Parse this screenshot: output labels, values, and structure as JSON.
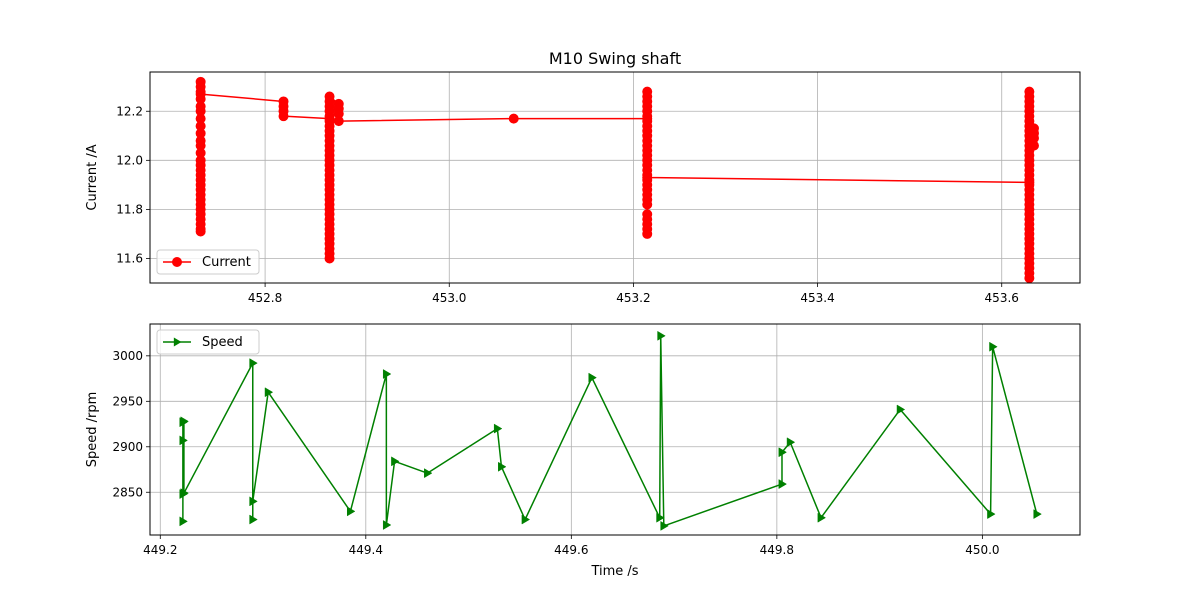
{
  "chart_data": [
    {
      "type": "line",
      "title": "M10 Swing shaft",
      "xlabel": "",
      "ylabel": "Current /A",
      "xlim": [
        452.675,
        453.685
      ],
      "ylim": [
        11.5,
        12.36
      ],
      "xticks": [
        452.8,
        453.0,
        453.2,
        453.4,
        453.6
      ],
      "xtick_labels": [
        "452.8",
        "453.0",
        "453.2",
        "453.4",
        "453.6"
      ],
      "yticks": [
        11.6,
        11.8,
        12.0,
        12.2
      ],
      "ytick_labels": [
        "11.6",
        "11.8",
        "12.0",
        "12.2"
      ],
      "grid": true,
      "legend": "lower-left",
      "series": [
        {
          "name": "Current",
          "color": "#ff0000",
          "marker": "circle",
          "points": [
            [
              452.73,
              11.71
            ],
            [
              452.73,
              11.72
            ],
            [
              452.73,
              11.74
            ],
            [
              452.73,
              11.76
            ],
            [
              452.73,
              11.78
            ],
            [
              452.73,
              11.8
            ],
            [
              452.73,
              11.82
            ],
            [
              452.73,
              11.84
            ],
            [
              452.73,
              11.86
            ],
            [
              452.73,
              11.88
            ],
            [
              452.73,
              11.9
            ],
            [
              452.73,
              11.92
            ],
            [
              452.73,
              11.94
            ],
            [
              452.73,
              11.96
            ],
            [
              452.73,
              11.98
            ],
            [
              452.73,
              12.0
            ],
            [
              452.73,
              12.03
            ],
            [
              452.73,
              12.06
            ],
            [
              452.73,
              12.08
            ],
            [
              452.73,
              12.11
            ],
            [
              452.73,
              12.14
            ],
            [
              452.73,
              12.17
            ],
            [
              452.73,
              12.2
            ],
            [
              452.73,
              12.22
            ],
            [
              452.73,
              12.25
            ],
            [
              452.73,
              12.28
            ],
            [
              452.73,
              12.3
            ],
            [
              452.73,
              12.32
            ],
            [
              452.73,
              12.27
            ],
            [
              452.82,
              12.24
            ],
            [
              452.82,
              12.22
            ],
            [
              452.82,
              12.2
            ],
            [
              452.82,
              12.18
            ],
            [
              452.87,
              12.17
            ],
            [
              452.87,
              11.6
            ],
            [
              452.87,
              11.62
            ],
            [
              452.87,
              11.64
            ],
            [
              452.87,
              11.66
            ],
            [
              452.87,
              11.68
            ],
            [
              452.87,
              11.7
            ],
            [
              452.87,
              11.72
            ],
            [
              452.87,
              11.74
            ],
            [
              452.87,
              11.76
            ],
            [
              452.87,
              11.78
            ],
            [
              452.87,
              11.8
            ],
            [
              452.87,
              11.82
            ],
            [
              452.87,
              11.84
            ],
            [
              452.87,
              11.86
            ],
            [
              452.87,
              11.88
            ],
            [
              452.87,
              11.9
            ],
            [
              452.87,
              11.92
            ],
            [
              452.87,
              11.94
            ],
            [
              452.87,
              11.96
            ],
            [
              452.87,
              11.98
            ],
            [
              452.87,
              12.0
            ],
            [
              452.87,
              12.02
            ],
            [
              452.87,
              12.04
            ],
            [
              452.87,
              12.06
            ],
            [
              452.87,
              12.08
            ],
            [
              452.87,
              12.1
            ],
            [
              452.87,
              12.12
            ],
            [
              452.87,
              12.14
            ],
            [
              452.87,
              12.16
            ],
            [
              452.87,
              12.18
            ],
            [
              452.87,
              12.2
            ],
            [
              452.87,
              12.22
            ],
            [
              452.87,
              12.24
            ],
            [
              452.87,
              12.26
            ],
            [
              452.88,
              12.23
            ],
            [
              452.88,
              12.21
            ],
            [
              452.88,
              12.19
            ],
            [
              452.88,
              12.16
            ],
            [
              453.07,
              12.17
            ],
            [
              453.215,
              12.17
            ],
            [
              453.215,
              11.7
            ],
            [
              453.215,
              11.72
            ],
            [
              453.215,
              11.74
            ],
            [
              453.215,
              11.76
            ],
            [
              453.215,
              11.78
            ],
            [
              453.215,
              11.82
            ],
            [
              453.215,
              11.84
            ],
            [
              453.215,
              11.86
            ],
            [
              453.215,
              11.88
            ],
            [
              453.215,
              11.9
            ],
            [
              453.215,
              11.92
            ],
            [
              453.215,
              11.94
            ],
            [
              453.215,
              11.96
            ],
            [
              453.215,
              11.98
            ],
            [
              453.215,
              12.0
            ],
            [
              453.215,
              12.02
            ],
            [
              453.215,
              12.04
            ],
            [
              453.215,
              12.06
            ],
            [
              453.215,
              12.08
            ],
            [
              453.215,
              12.1
            ],
            [
              453.215,
              12.12
            ],
            [
              453.215,
              12.14
            ],
            [
              453.215,
              12.16
            ],
            [
              453.215,
              12.18
            ],
            [
              453.215,
              12.2
            ],
            [
              453.215,
              12.22
            ],
            [
              453.215,
              12.24
            ],
            [
              453.215,
              12.26
            ],
            [
              453.215,
              12.28
            ],
            [
              453.215,
              11.93
            ],
            [
              453.63,
              11.91
            ],
            [
              453.63,
              11.52
            ],
            [
              453.63,
              11.54
            ],
            [
              453.63,
              11.56
            ],
            [
              453.63,
              11.58
            ],
            [
              453.63,
              11.6
            ],
            [
              453.63,
              11.62
            ],
            [
              453.63,
              11.64
            ],
            [
              453.63,
              11.66
            ],
            [
              453.63,
              11.68
            ],
            [
              453.63,
              11.7
            ],
            [
              453.63,
              11.72
            ],
            [
              453.63,
              11.74
            ],
            [
              453.63,
              11.76
            ],
            [
              453.63,
              11.78
            ],
            [
              453.63,
              11.8
            ],
            [
              453.63,
              11.82
            ],
            [
              453.63,
              11.84
            ],
            [
              453.63,
              11.86
            ],
            [
              453.63,
              11.88
            ],
            [
              453.63,
              11.9
            ],
            [
              453.63,
              11.92
            ],
            [
              453.63,
              11.94
            ],
            [
              453.63,
              11.96
            ],
            [
              453.63,
              11.98
            ],
            [
              453.63,
              12.0
            ],
            [
              453.63,
              12.02
            ],
            [
              453.63,
              12.04
            ],
            [
              453.63,
              12.06
            ],
            [
              453.63,
              12.08
            ],
            [
              453.63,
              12.1
            ],
            [
              453.63,
              12.12
            ],
            [
              453.63,
              12.14
            ],
            [
              453.63,
              12.16
            ],
            [
              453.63,
              12.18
            ],
            [
              453.63,
              12.2
            ],
            [
              453.63,
              12.22
            ],
            [
              453.63,
              12.24
            ],
            [
              453.63,
              12.26
            ],
            [
              453.63,
              12.28
            ],
            [
              453.635,
              12.13
            ],
            [
              453.635,
              12.11
            ],
            [
              453.635,
              12.09
            ],
            [
              453.635,
              12.06
            ]
          ]
        }
      ]
    },
    {
      "type": "line",
      "title": "",
      "xlabel": "Time /s",
      "ylabel": "Speed /rpm",
      "xlim": [
        449.19,
        450.095
      ],
      "ylim": [
        2803,
        3035
      ],
      "xticks": [
        449.2,
        449.4,
        449.6,
        449.8,
        450.0
      ],
      "xtick_labels": [
        "449.2",
        "449.4",
        "449.6",
        "449.8",
        "450.0"
      ],
      "yticks": [
        2850,
        2900,
        2950,
        3000
      ],
      "ytick_labels": [
        "2850",
        "2900",
        "2950",
        "3000"
      ],
      "grid": true,
      "legend": "upper-left",
      "series": [
        {
          "name": "Speed",
          "color": "#008000",
          "marker": "triangle-right",
          "points": [
            [
              449.222,
              2927
            ],
            [
              449.222,
              2818
            ],
            [
              449.222,
              2848
            ],
            [
              449.222,
              2907
            ],
            [
              449.223,
              2928
            ],
            [
              449.223,
              2849
            ],
            [
              449.29,
              2992
            ],
            [
              449.29,
              2820
            ],
            [
              449.29,
              2840
            ],
            [
              449.305,
              2960
            ],
            [
              449.385,
              2829
            ],
            [
              449.42,
              2980
            ],
            [
              449.42,
              2814
            ],
            [
              449.428,
              2884
            ],
            [
              449.46,
              2871
            ],
            [
              449.528,
              2920
            ],
            [
              449.532,
              2878
            ],
            [
              449.555,
              2820
            ],
            [
              449.62,
              2976
            ],
            [
              449.686,
              2822
            ],
            [
              449.687,
              3022
            ],
            [
              449.69,
              2813
            ],
            [
              449.805,
              2859
            ],
            [
              449.805,
              2894
            ],
            [
              449.813,
              2905
            ],
            [
              449.843,
              2822
            ],
            [
              449.92,
              2941
            ],
            [
              450.008,
              2826
            ],
            [
              450.01,
              3010
            ],
            [
              450.053,
              2826
            ]
          ]
        }
      ]
    }
  ]
}
